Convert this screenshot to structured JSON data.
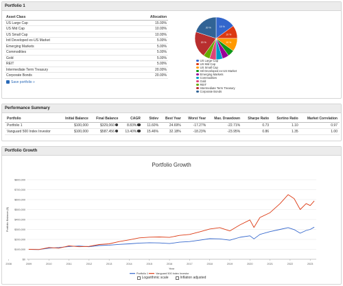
{
  "portfolio_panel": {
    "title": "Portfolio 1",
    "col_asset": "Asset Class",
    "col_alloc": "Allocation",
    "rows": [
      {
        "asset": "US Large Cap",
        "alloc": "15.00%"
      },
      {
        "asset": "US Mid Cap",
        "alloc": "10.00%"
      },
      {
        "asset": "US Small Cap",
        "alloc": "10.00%"
      },
      {
        "asset": "Intl Developed ex-US Market",
        "alloc": "5.00%"
      },
      {
        "asset": "Emerging Markets",
        "alloc": "5.00%"
      },
      {
        "asset": "Commodities",
        "alloc": "5.00%"
      },
      {
        "asset": "Gold",
        "alloc": "5.00%"
      },
      {
        "asset": "REIT",
        "alloc": "5.00%"
      },
      {
        "asset": "Intermediate Term Treasury",
        "alloc": "20.00%"
      },
      {
        "asset": "Corporate Bonds",
        "alloc": "20.00%"
      }
    ],
    "save_label": "Save portfolio »",
    "pie_slices": [
      {
        "name": "US Large Cap",
        "value": 15,
        "color": "#3366cc",
        "label": "15 %"
      },
      {
        "name": "US Mid Cap",
        "value": 10,
        "color": "#dc3912",
        "label": "10 %"
      },
      {
        "name": "US Small Cap",
        "value": 10,
        "color": "#ff9900",
        "label": "10 %"
      },
      {
        "name": "Intl Developed ex-US Market",
        "value": 5,
        "color": "#109618",
        "label": ""
      },
      {
        "name": "Emerging Markets",
        "value": 5,
        "color": "#990099",
        "label": ""
      },
      {
        "name": "Commodities",
        "value": 5,
        "color": "#0099c6",
        "label": ""
      },
      {
        "name": "Gold",
        "value": 5,
        "color": "#dd4477",
        "label": ""
      },
      {
        "name": "REIT",
        "value": 5,
        "color": "#66aa00",
        "label": ""
      },
      {
        "name": "Intermediate Term Treasury",
        "value": 20,
        "color": "#b82e2e",
        "label": "20 %"
      },
      {
        "name": "Corporate Bonds",
        "value": 20,
        "color": "#316395",
        "label": "20 %"
      }
    ]
  },
  "performance_panel": {
    "title": "Performance Summary",
    "headers": [
      "Portfolio",
      "Initial Balance",
      "Final Balance",
      "CAGR",
      "Stdev",
      "Best Year",
      "Worst Year",
      "Max. Drawdown",
      "Sharpe Ratio",
      "Sortino Ratio",
      "Market Correlation"
    ],
    "rows": [
      [
        "Portfolio 1",
        "$100,000",
        "$329,060",
        "8.83%",
        "11.60%",
        "24.69%",
        "-17.27%",
        "-22.71%",
        "0.73",
        "1.10",
        "0.97"
      ],
      [
        "Vanguard 500 Index Investor",
        "$100,000",
        "$587,456",
        "13.40%",
        "15.46%",
        "32.18%",
        "-18.23%",
        "-23.95%",
        "0.86",
        "1.35",
        "1.00"
      ]
    ],
    "info_glyph": "i"
  },
  "growth_panel": {
    "title": "Portfolio Growth",
    "logarithmic_label": "Logarithmic scale",
    "inflation_label": "Inflation adjusted"
  },
  "chart_data": {
    "type": "line",
    "title": "Portfolio Growth",
    "xlabel": "Year",
    "ylabel": "Portfolio Balance ($)",
    "x_ticks": [
      "2008",
      "2009",
      "2010",
      "2011",
      "2012",
      "2013",
      "2014",
      "2015",
      "2016",
      "2017",
      "2018",
      "2019",
      "2020",
      "2021",
      "2022",
      "2023"
    ],
    "y_ticks": [
      "$0",
      "$100,000",
      "$200,000",
      "$300,000",
      "$400,000",
      "$500,000",
      "$600,000",
      "$700,000",
      "$800,000"
    ],
    "ylim": [
      0,
      800000
    ],
    "xlim": [
      2008.9,
      2023.3
    ],
    "grid": true,
    "legend_position": "bottom",
    "series": [
      {
        "name": "Portfolio 1",
        "color": "#3366cc",
        "points": [
          [
            2009.0,
            100000
          ],
          [
            2009.5,
            98000
          ],
          [
            2010.0,
            112000
          ],
          [
            2010.5,
            118000
          ],
          [
            2011.0,
            128000
          ],
          [
            2011.5,
            133000
          ],
          [
            2012.0,
            126000
          ],
          [
            2012.5,
            138000
          ],
          [
            2013.0,
            142000
          ],
          [
            2013.5,
            150000
          ],
          [
            2014.0,
            155000
          ],
          [
            2014.5,
            163000
          ],
          [
            2015.0,
            166000
          ],
          [
            2015.5,
            164000
          ],
          [
            2016.0,
            158000
          ],
          [
            2016.5,
            172000
          ],
          [
            2017.0,
            178000
          ],
          [
            2017.5,
            192000
          ],
          [
            2018.0,
            207000
          ],
          [
            2018.5,
            205000
          ],
          [
            2019.0,
            192000
          ],
          [
            2019.5,
            221000
          ],
          [
            2020.0,
            236000
          ],
          [
            2020.2,
            205000
          ],
          [
            2020.5,
            250000
          ],
          [
            2021.0,
            278000
          ],
          [
            2021.5,
            300000
          ],
          [
            2021.9,
            318000
          ],
          [
            2022.2,
            298000
          ],
          [
            2022.5,
            262000
          ],
          [
            2022.8,
            290000
          ],
          [
            2023.0,
            300000
          ],
          [
            2023.2,
            323000
          ]
        ]
      },
      {
        "name": "Vanguard 500 Index Investor",
        "color": "#dc3912",
        "points": [
          [
            2009.0,
            100000
          ],
          [
            2009.5,
            98000
          ],
          [
            2010.0,
            118000
          ],
          [
            2010.5,
            112000
          ],
          [
            2011.0,
            135000
          ],
          [
            2011.5,
            126000
          ],
          [
            2012.0,
            130000
          ],
          [
            2012.5,
            148000
          ],
          [
            2013.0,
            155000
          ],
          [
            2013.5,
            178000
          ],
          [
            2014.0,
            195000
          ],
          [
            2014.5,
            215000
          ],
          [
            2015.0,
            222000
          ],
          [
            2015.5,
            224000
          ],
          [
            2016.0,
            220000
          ],
          [
            2016.5,
            240000
          ],
          [
            2017.0,
            250000
          ],
          [
            2017.5,
            275000
          ],
          [
            2018.0,
            304000
          ],
          [
            2018.5,
            318000
          ],
          [
            2019.0,
            285000
          ],
          [
            2019.5,
            345000
          ],
          [
            2020.0,
            395000
          ],
          [
            2020.2,
            320000
          ],
          [
            2020.5,
            420000
          ],
          [
            2021.0,
            468000
          ],
          [
            2021.5,
            560000
          ],
          [
            2021.9,
            650000
          ],
          [
            2022.2,
            610000
          ],
          [
            2022.5,
            500000
          ],
          [
            2022.8,
            560000
          ],
          [
            2023.0,
            540000
          ],
          [
            2023.2,
            587000
          ]
        ]
      }
    ]
  }
}
